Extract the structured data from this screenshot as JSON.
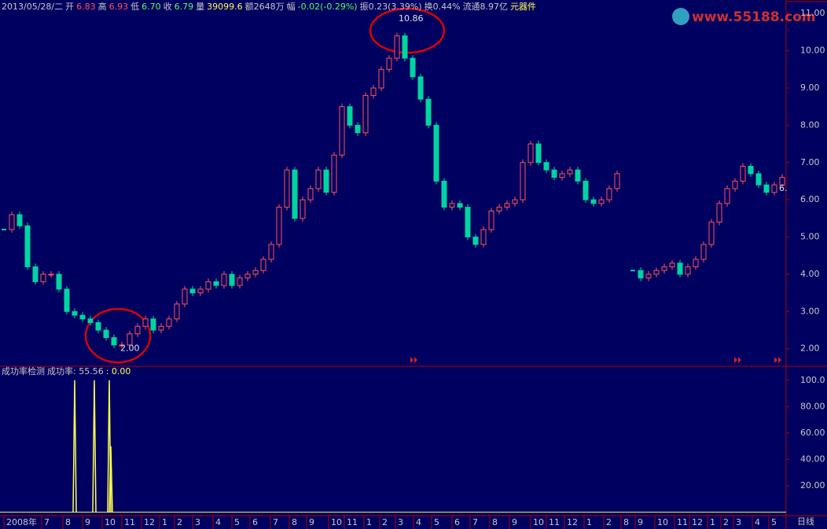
{
  "header": {
    "segments": [
      {
        "text": "2013/05/28/二",
        "color": "#c8c8c8"
      },
      {
        "text": "开",
        "color": "#c8c8c8"
      },
      {
        "text": "6.83",
        "color": "#ff5454"
      },
      {
        "text": "高",
        "color": "#c8c8c8"
      },
      {
        "text": "6.93",
        "color": "#ff5454"
      },
      {
        "text": "低",
        "color": "#c8c8c8"
      },
      {
        "text": "6.70",
        "color": "#54ff54"
      },
      {
        "text": "收",
        "color": "#c8c8c8"
      },
      {
        "text": "6.79",
        "color": "#54ff54"
      },
      {
        "text": "量",
        "color": "#c8c8c8"
      },
      {
        "text": "39099.6",
        "color": "#ffff54"
      },
      {
        "text": "额2648万",
        "color": "#c8c8c8"
      },
      {
        "text": "幅",
        "color": "#c8c8c8"
      },
      {
        "text": "-0.02(-0.29%)",
        "color": "#54ff54"
      },
      {
        "text": "振0.23(3.39%)",
        "color": "#c8c8c8"
      },
      {
        "text": "换0.44%",
        "color": "#c8c8c8"
      },
      {
        "text": "流通8.97亿",
        "color": "#c8c8c8"
      },
      {
        "text": "元器件",
        "color": "#ffff54"
      }
    ],
    "watermark": "www.55188.com"
  },
  "chart_data": [
    {
      "type": "candlestick",
      "up_color": "#ff5454",
      "down_color": "#00d4a0",
      "values": [
        5.2,
        5.6,
        5.3,
        4.2,
        3.8,
        4.0,
        4.0,
        3.6,
        3.0,
        2.9,
        2.8,
        2.7,
        2.5,
        2.3,
        2.1,
        2.1,
        2.4,
        2.6,
        2.8,
        2.5,
        2.6,
        2.8,
        3.2,
        3.6,
        3.5,
        3.6,
        3.8,
        3.7,
        4.0,
        3.7,
        3.9,
        4.0,
        4.1,
        4.4,
        4.8,
        5.8,
        6.8,
        5.5,
        6.0,
        6.3,
        6.8,
        6.2,
        7.2,
        8.5,
        8.0,
        7.8,
        8.8,
        9.0,
        9.5,
        9.8,
        10.4,
        9.8,
        9.3,
        8.7,
        8.0,
        6.5,
        5.8,
        5.9,
        5.8,
        5.0,
        4.8,
        5.2,
        5.7,
        5.8,
        5.9,
        6.0,
        7.0,
        7.5,
        7.0,
        6.8,
        6.6,
        6.7,
        6.8,
        6.5,
        6.0,
        5.9,
        6.0,
        6.3,
        6.7,
        null,
        4.1,
        3.9,
        4.0,
        4.1,
        4.2,
        4.3,
        4.0,
        4.2,
        4.4,
        4.8,
        5.4,
        5.9,
        6.3,
        6.5,
        6.9,
        6.7,
        6.4,
        6.2,
        6.4,
        6.6
      ],
      "xlim": [
        -0.5,
        99.5
      ],
      "ylim": [
        1.55,
        11.3
      ],
      "yticks": [
        {
          "value": 2,
          "label": "2.00"
        },
        {
          "value": 3,
          "label": "3.00"
        },
        {
          "value": 4,
          "label": "4.00"
        },
        {
          "value": 5,
          "label": "5.00"
        },
        {
          "value": 6,
          "label": "6.00"
        },
        {
          "value": 7,
          "label": "7.00"
        },
        {
          "value": 8,
          "label": "8.00"
        },
        {
          "value": 9,
          "label": "9.00"
        },
        {
          "value": 10,
          "label": "10.00"
        },
        {
          "value": 11,
          "label": "11.00"
        }
      ],
      "annotations": [
        {
          "text": "10.86",
          "x": 50.2,
          "y": 10.86
        },
        {
          "text": "2.00",
          "x": 14.8,
          "y": 2.0
        },
        {
          "text": "6.",
          "x": 98.6,
          "y": 6.3
        }
      ],
      "xticks": [
        {
          "value": 0,
          "label": "2008年"
        },
        {
          "value": 4.8,
          "label": "7"
        },
        {
          "value": 7.5,
          "label": "8"
        },
        {
          "value": 10,
          "label": "9"
        },
        {
          "value": 12.5,
          "label": "10"
        },
        {
          "value": 15,
          "label": "11"
        },
        {
          "value": 17.5,
          "label": "12"
        },
        {
          "value": 19.8,
          "label": "1"
        },
        {
          "value": 21.7,
          "label": "2"
        },
        {
          "value": 24,
          "label": "3"
        },
        {
          "value": 26.6,
          "label": "4"
        },
        {
          "value": 29,
          "label": "5"
        },
        {
          "value": 31.3,
          "label": "6"
        },
        {
          "value": 33.9,
          "label": "7"
        },
        {
          "value": 36.3,
          "label": "8"
        },
        {
          "value": 38.5,
          "label": "9"
        },
        {
          "value": 41.3,
          "label": "10"
        },
        {
          "value": 43.3,
          "label": "11"
        },
        {
          "value": 45.8,
          "label": "1"
        },
        {
          "value": 47.8,
          "label": "2"
        },
        {
          "value": 49.8,
          "label": "3"
        },
        {
          "value": 52.1,
          "label": "4"
        },
        {
          "value": 54.4,
          "label": "5"
        },
        {
          "value": 57,
          "label": "6"
        },
        {
          "value": 59.3,
          "label": "7"
        },
        {
          "value": 61.8,
          "label": "8"
        },
        {
          "value": 64.3,
          "label": "9"
        },
        {
          "value": 67,
          "label": "10"
        },
        {
          "value": 69,
          "label": "11"
        },
        {
          "value": 71.3,
          "label": "12"
        },
        {
          "value": 73.8,
          "label": "1"
        },
        {
          "value": 76.3,
          "label": "2"
        },
        {
          "value": 78.5,
          "label": "8"
        },
        {
          "value": 80.3,
          "label": "9"
        },
        {
          "value": 82.8,
          "label": "10"
        },
        {
          "value": 85.3,
          "label": "11"
        },
        {
          "value": 87.2,
          "label": "12"
        },
        {
          "value": 89.5,
          "label": "1"
        },
        {
          "value": 91.2,
          "label": "2"
        },
        {
          "value": 92.8,
          "label": "3"
        },
        {
          "value": 95.2,
          "label": "4"
        },
        {
          "value": 97.3,
          "label": "5"
        }
      ],
      "period": "日线"
    },
    {
      "type": "spike",
      "title_segments": [
        {
          "text": "成功率检测",
          "color": "#c8c8c8"
        },
        {
          "text": "成功率: 55.56",
          "color": "#c8c8c8"
        },
        {
          "text": ": 0.00",
          "color": "#ffff54"
        }
      ],
      "color": "#ffff54",
      "x": [
        9.0,
        11.5,
        13.4,
        13.6
      ],
      "values": [
        100,
        100,
        100,
        50
      ],
      "xlim": [
        -0.5,
        99.5
      ],
      "ylim": [
        -2,
        107
      ],
      "yticks": [
        {
          "value": 20,
          "label": "20.00"
        },
        {
          "value": 40,
          "label": "40.00"
        },
        {
          "value": 60,
          "label": "60.00"
        },
        {
          "value": 80,
          "label": "80.00"
        },
        {
          "value": 100,
          "label": "100.0"
        }
      ]
    }
  ]
}
